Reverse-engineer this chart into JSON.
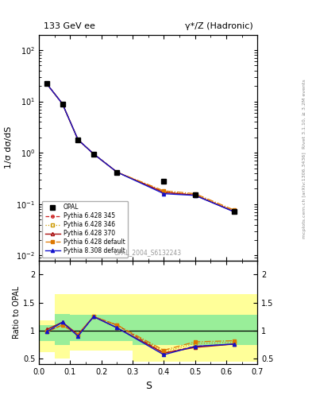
{
  "title_left": "133 GeV ee",
  "title_right": "γ*/Z (Hadronic)",
  "ylabel_main": "1/σ dσ/dS",
  "ylabel_ratio": "Ratio to OPAL",
  "xlabel": "S",
  "watermark": "OPAL_2004_S6132243",
  "right_label": "Rivet 3.1.10, ≥ 3.2M events",
  "right_label2": "mcplots.cern.ch [arXiv:1306.3436]",
  "opal_x": [
    0.025,
    0.075,
    0.125,
    0.175,
    0.25,
    0.4,
    0.5,
    0.625
  ],
  "opal_y": [
    22.0,
    9.0,
    1.8,
    0.95,
    0.42,
    0.28,
    0.15,
    0.072
  ],
  "mc_x": [
    0.025,
    0.075,
    0.125,
    0.175,
    0.25,
    0.4,
    0.5,
    0.625
  ],
  "p345_y": [
    22.0,
    9.0,
    1.8,
    0.95,
    0.42,
    0.17,
    0.15,
    0.072
  ],
  "p346_y": [
    22.0,
    9.0,
    1.8,
    0.95,
    0.42,
    0.175,
    0.155,
    0.075
  ],
  "p370_y": [
    22.0,
    9.0,
    1.8,
    0.95,
    0.42,
    0.17,
    0.15,
    0.072
  ],
  "pdef_y": [
    22.0,
    9.0,
    1.8,
    0.95,
    0.42,
    0.182,
    0.16,
    0.077
  ],
  "p8def_y": [
    22.0,
    9.0,
    1.8,
    0.95,
    0.42,
    0.16,
    0.148,
    0.071
  ],
  "ratio_x": [
    0.025,
    0.075,
    0.125,
    0.175,
    0.25,
    0.4,
    0.5,
    0.625
  ],
  "r345": [
    0.98,
    1.1,
    0.93,
    1.25,
    1.1,
    0.6,
    0.72,
    0.76
  ],
  "r346": [
    0.98,
    1.1,
    0.93,
    1.25,
    1.1,
    0.625,
    0.77,
    0.79
  ],
  "r370": [
    1.02,
    1.15,
    0.93,
    1.25,
    1.05,
    0.6,
    0.7,
    0.76
  ],
  "rdef": [
    0.98,
    1.1,
    0.93,
    1.25,
    1.1,
    0.65,
    0.8,
    0.82
  ],
  "r8def": [
    0.98,
    1.15,
    0.9,
    1.25,
    1.05,
    0.57,
    0.72,
    0.76
  ],
  "bin_edges": [
    0.0,
    0.05,
    0.1,
    0.15,
    0.2,
    0.3,
    0.5,
    0.65,
    0.7
  ],
  "yellow_lo": [
    0.62,
    0.5,
    0.65,
    0.65,
    0.65,
    0.45,
    0.45,
    0.45
  ],
  "yellow_hi": [
    1.18,
    1.65,
    1.65,
    1.65,
    1.65,
    1.65,
    1.65,
    1.65
  ],
  "green_lo": [
    0.82,
    0.75,
    0.82,
    0.82,
    0.82,
    0.75,
    0.75,
    0.75
  ],
  "green_hi": [
    1.1,
    1.3,
    1.28,
    1.28,
    1.28,
    1.28,
    1.28,
    1.28
  ],
  "ylim_main": [
    0.008,
    200
  ],
  "ylim_ratio": [
    0.4,
    2.25
  ],
  "yticks_ratio": [
    0.5,
    1.0,
    1.5,
    2.0
  ],
  "ytick_labels_ratio": [
    "0.5",
    "1",
    "1.5",
    "2"
  ],
  "xlim": [
    0.0,
    0.7
  ],
  "color_345": "#cc2222",
  "color_346": "#cc9900",
  "color_370": "#aa1111",
  "color_pdef": "#dd7700",
  "color_8def": "#1111cc",
  "yellow_color": "#ffff99",
  "green_color": "#99ee99"
}
